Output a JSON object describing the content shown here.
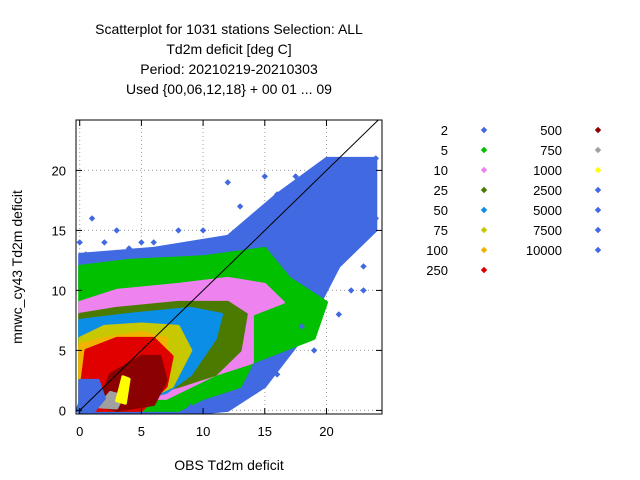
{
  "chart_data": {
    "type": "scatter",
    "title_lines": [
      "Scatterplot for 1031 stations Selection: ALL",
      "Td2m deficit [deg C]",
      "Period: 20210219-20210303",
      "Used {00,06,12,18} + 00 01 ... 09"
    ],
    "xlabel": "OBS Td2m deficit",
    "ylabel": "mnwc_cy43 Td2m deficit",
    "xlim": [
      -0.3,
      24.5
    ],
    "ylim": [
      -0.3,
      24.2
    ],
    "xticks": [
      0,
      5,
      10,
      15,
      20
    ],
    "yticks": [
      0,
      5,
      10,
      15,
      20
    ],
    "grid": true,
    "legend_position": "right",
    "legend": [
      {
        "label": "2",
        "color": "#4169e1"
      },
      {
        "label": "5",
        "color": "#00c000"
      },
      {
        "label": "10",
        "color": "#ee82ee"
      },
      {
        "label": "25",
        "color": "#4b7a00"
      },
      {
        "label": "50",
        "color": "#0a8ee6"
      },
      {
        "label": "75",
        "color": "#c8c800"
      },
      {
        "label": "100",
        "color": "#f0b400"
      },
      {
        "label": "250",
        "color": "#e00000"
      },
      {
        "label": "500",
        "color": "#8b0000"
      },
      {
        "label": "750",
        "color": "#a0a0a0"
      },
      {
        "label": "1000",
        "color": "#ffff00"
      },
      {
        "label": "2500",
        "color": "#4169e1"
      },
      {
        "label": "5000",
        "color": "#4169e1"
      },
      {
        "label": "7500",
        "color": "#4169e1"
      },
      {
        "label": "10000",
        "color": "#4169e1"
      }
    ],
    "regions": [
      {
        "category": "2",
        "color": "#4169e1",
        "polygon": [
          [
            -0.2,
            0
          ],
          [
            2,
            7
          ],
          [
            0,
            10
          ],
          [
            0,
            13
          ],
          [
            6,
            13.5
          ],
          [
            12,
            14.5
          ],
          [
            16,
            18
          ],
          [
            20,
            21
          ],
          [
            24,
            21
          ],
          [
            24,
            15
          ],
          [
            21,
            12
          ],
          [
            18,
            6
          ],
          [
            15,
            2
          ],
          [
            12,
            0
          ],
          [
            10,
            -0.2
          ],
          [
            0,
            -0.2
          ]
        ]
      },
      {
        "category": "5",
        "color": "#00c000",
        "polygon": [
          [
            0,
            3
          ],
          [
            0,
            12
          ],
          [
            4,
            12.5
          ],
          [
            10,
            12.8
          ],
          [
            15,
            13.5
          ],
          [
            17,
            11
          ],
          [
            20,
            9
          ],
          [
            19,
            6
          ],
          [
            14,
            4
          ],
          [
            13,
            2
          ],
          [
            10,
            1
          ],
          [
            8,
            0
          ],
          [
            0,
            0
          ]
        ]
      },
      {
        "category": "10",
        "color": "#ee82ee",
        "polygon": [
          [
            0,
            4
          ],
          [
            0,
            9
          ],
          [
            3,
            10
          ],
          [
            8,
            10.5
          ],
          [
            12,
            11
          ],
          [
            15,
            10.5
          ],
          [
            16.5,
            9
          ],
          [
            14,
            8
          ],
          [
            14,
            4
          ],
          [
            11,
            3
          ],
          [
            7,
            1
          ],
          [
            3,
            1
          ]
        ]
      },
      {
        "category": "25",
        "color": "#4b7a00",
        "polygon": [
          [
            0,
            2
          ],
          [
            0,
            8
          ],
          [
            3,
            8.5
          ],
          [
            8,
            9
          ],
          [
            12,
            9
          ],
          [
            13.5,
            8
          ],
          [
            13,
            5
          ],
          [
            11,
            3
          ],
          [
            8,
            2
          ],
          [
            4,
            1
          ],
          [
            1,
            0.5
          ]
        ]
      },
      {
        "category": "50",
        "color": "#0a8ee6",
        "polygon": [
          [
            0,
            1
          ],
          [
            0,
            7.5
          ],
          [
            4,
            8
          ],
          [
            9,
            8.5
          ],
          [
            11.5,
            8
          ],
          [
            11,
            6
          ],
          [
            9,
            3
          ],
          [
            7,
            1.5
          ],
          [
            3,
            0.5
          ]
        ]
      },
      {
        "category": "75",
        "color": "#c8c800",
        "polygon": [
          [
            0,
            1
          ],
          [
            0,
            6
          ],
          [
            2,
            7
          ],
          [
            5,
            7.2
          ],
          [
            8,
            7
          ],
          [
            9,
            5
          ],
          [
            7.5,
            2
          ],
          [
            4,
            0.3
          ],
          [
            1,
            0
          ]
        ]
      },
      {
        "category": "100",
        "color": "#f0b400",
        "polygon": [
          [
            0,
            1
          ],
          [
            0,
            5.5
          ],
          [
            2,
            6
          ],
          [
            5,
            6.5
          ],
          [
            7,
            6
          ],
          [
            7,
            3
          ],
          [
            5,
            1
          ],
          [
            2,
            0
          ]
        ]
      },
      {
        "category": "250",
        "color": "#e00000",
        "polygon": [
          [
            0,
            1
          ],
          [
            0.5,
            5
          ],
          [
            3,
            6
          ],
          [
            6,
            6
          ],
          [
            7.5,
            4.5
          ],
          [
            7,
            2
          ],
          [
            5,
            0
          ],
          [
            1,
            0
          ]
        ]
      },
      {
        "category": "500",
        "color": "#8b0000",
        "polygon": [
          [
            1.5,
            0.5
          ],
          [
            2.5,
            3
          ],
          [
            5,
            4.5
          ],
          [
            6.5,
            4.5
          ],
          [
            7,
            2.5
          ],
          [
            6,
            0.5
          ],
          [
            3,
            0
          ]
        ]
      },
      {
        "category": "750",
        "color": "#a0a0a0",
        "polygon": [
          [
            1.5,
            0.3
          ],
          [
            2.5,
            1.5
          ],
          [
            3.5,
            1.2
          ],
          [
            3,
            0.2
          ]
        ]
      },
      {
        "category": "1000",
        "color": "#ffff00",
        "polygon": [
          [
            3,
            0.8
          ],
          [
            3.5,
            2.8
          ],
          [
            4,
            2.6
          ],
          [
            3.7,
            0.6
          ]
        ]
      },
      {
        "category": "2500",
        "color": "#4169e1",
        "polygon": [
          [
            0,
            0
          ],
          [
            0,
            2.5
          ],
          [
            1.5,
            2.5
          ],
          [
            2,
            1
          ],
          [
            1.2,
            0
          ]
        ]
      }
    ],
    "outliers": [
      [
        17.5,
        19.5
      ],
      [
        19,
        17
      ],
      [
        21,
        13
      ],
      [
        23,
        12
      ],
      [
        24,
        16
      ],
      [
        18,
        15
      ],
      [
        20,
        11
      ],
      [
        22,
        10
      ],
      [
        1,
        16
      ],
      [
        3,
        15
      ],
      [
        5,
        14
      ],
      [
        8,
        15
      ],
      [
        10,
        15
      ],
      [
        13,
        17
      ],
      [
        15,
        19.5
      ],
      [
        16,
        18
      ],
      [
        19,
        16
      ],
      [
        0,
        14
      ],
      [
        0.5,
        13
      ],
      [
        2,
        14
      ],
      [
        4,
        13.5
      ],
      [
        6,
        14
      ],
      [
        11,
        14
      ],
      [
        14,
        15
      ],
      [
        12,
        19
      ],
      [
        17,
        14
      ],
      [
        20,
        14
      ],
      [
        23,
        10
      ],
      [
        21,
        8
      ],
      [
        16,
        4
      ],
      [
        19,
        5
      ],
      [
        14,
        2
      ],
      [
        16,
        3
      ],
      [
        18,
        7
      ],
      [
        15,
        16
      ],
      [
        17,
        16
      ],
      [
        20,
        18
      ],
      [
        22,
        14
      ],
      [
        24,
        21
      ],
      [
        11,
        0.5
      ],
      [
        9,
        0.3
      ],
      [
        13,
        1
      ]
    ]
  }
}
